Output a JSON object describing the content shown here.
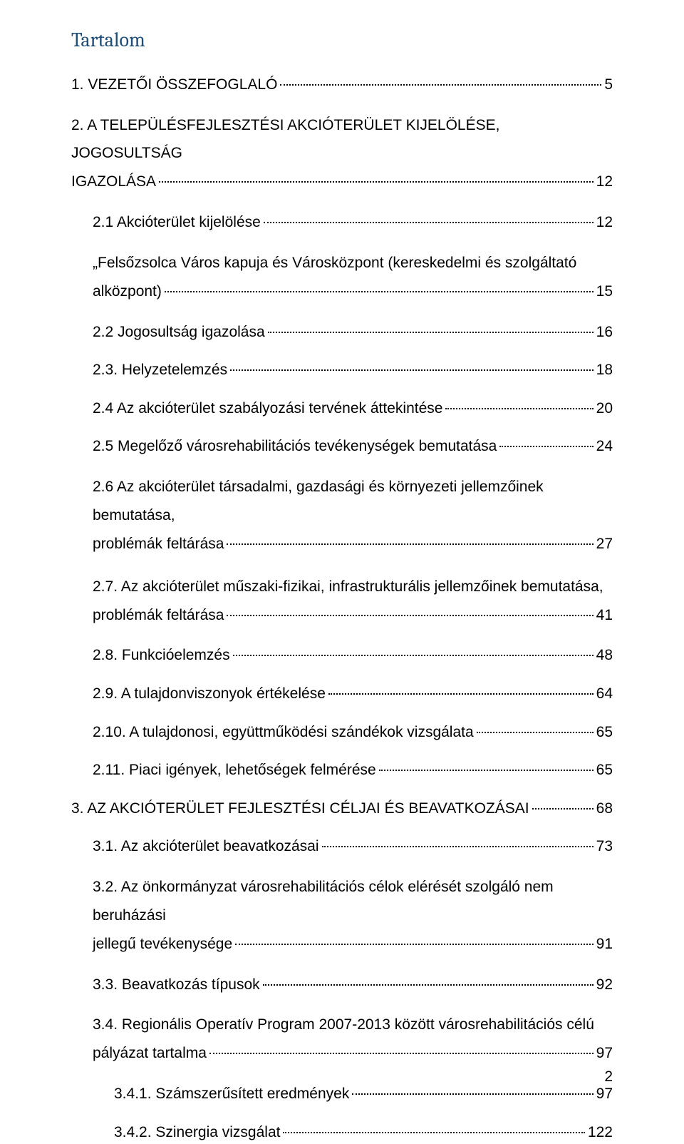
{
  "title": "Tartalom",
  "entries": [
    {
      "level": 1,
      "label": "1. VEZETŐI ÖSSZEFOGLALÓ",
      "page": "5",
      "multiline": false
    },
    {
      "level": 1,
      "label_line1": "2. A TELEPÜLÉSFEJLESZTÉSI AKCIÓTERÜLET KIJELÖLÉSE, JOGOSULTSÁG",
      "label_line2": "IGAZOLÁSA",
      "page": "12",
      "multiline": true
    },
    {
      "level": 2,
      "label": "2.1 Akcióterület kijelölése",
      "page": "12",
      "multiline": false
    },
    {
      "level": 2,
      "label_line1": "„Felsőzsolca Város kapuja és Városközpont (kereskedelmi és szolgáltató",
      "label_line2": "alközpont)",
      "page": "15",
      "multiline": true
    },
    {
      "level": 2,
      "label": "2.2 Jogosultság igazolása",
      "page": "16",
      "multiline": false
    },
    {
      "level": 2,
      "label": "2.3. Helyzetelemzés",
      "page": "18",
      "multiline": false
    },
    {
      "level": 2,
      "label": "2.4 Az akcióterület szabályozási tervének áttekintése",
      "page": "20",
      "multiline": false
    },
    {
      "level": 2,
      "label": "2.5 Megelőző városrehabilitációs tevékenységek bemutatása",
      "page": "24",
      "multiline": false
    },
    {
      "level": 2,
      "label_line1": "2.6 Az akcióterület társadalmi, gazdasági és környezeti jellemzőinek bemutatása,",
      "label_line2": "problémák feltárása",
      "page": "27",
      "multiline": true
    },
    {
      "level": 2,
      "label_line1": "2.7. Az akcióterület műszaki-fizikai, infrastrukturális jellemzőinek bemutatása,",
      "label_line2": "problémák feltárása",
      "page": "41",
      "multiline": true
    },
    {
      "level": 2,
      "label": "2.8. Funkcióelemzés",
      "page": "48",
      "multiline": false
    },
    {
      "level": 2,
      "label": "2.9. A tulajdonviszonyok értékelése",
      "page": "64",
      "multiline": false
    },
    {
      "level": 2,
      "label": "2.10. A tulajdonosi, együttműködési szándékok vizsgálata",
      "page": "65",
      "multiline": false
    },
    {
      "level": 2,
      "label": "2.11. Piaci igények, lehetőségek felmérése",
      "page": "65",
      "multiline": false
    },
    {
      "level": 1,
      "label": "3. AZ AKCIÓTERÜLET FEJLESZTÉSI CÉLJAI ÉS BEAVATKOZÁSAI",
      "page": "68",
      "multiline": false
    },
    {
      "level": 2,
      "label": "3.1. Az akcióterület beavatkozásai",
      "page": "73",
      "multiline": false
    },
    {
      "level": 2,
      "label_line1": "3.2. Az önkormányzat városrehabilitációs célok elérését szolgáló nem beruházási",
      "label_line2": "jellegű tevékenysége",
      "page": "91",
      "multiline": true
    },
    {
      "level": 2,
      "label": "3.3. Beavatkozás típusok",
      "page": "92",
      "multiline": false
    },
    {
      "level": 2,
      "label_line1": "3.4. Regionális Operatív Program 2007-2013 között városrehabilitációs célú",
      "label_line2": "pályázat tartalma",
      "page": "97",
      "multiline": true
    },
    {
      "level": 3,
      "label": "3.4.1. Számszerűsített eredmények",
      "page": "97",
      "multiline": false
    },
    {
      "level": 3,
      "label": "3.4.2. Szinergia vizsgálat",
      "page": "122",
      "multiline": false
    }
  ],
  "page_number": "2",
  "colors": {
    "title_color": "#1f4e79",
    "text_color": "#000000",
    "background": "#ffffff"
  },
  "fonts": {
    "title_family": "Cambria",
    "body_family": "Arial",
    "title_size_pt": 21,
    "body_size_pt": 16
  }
}
